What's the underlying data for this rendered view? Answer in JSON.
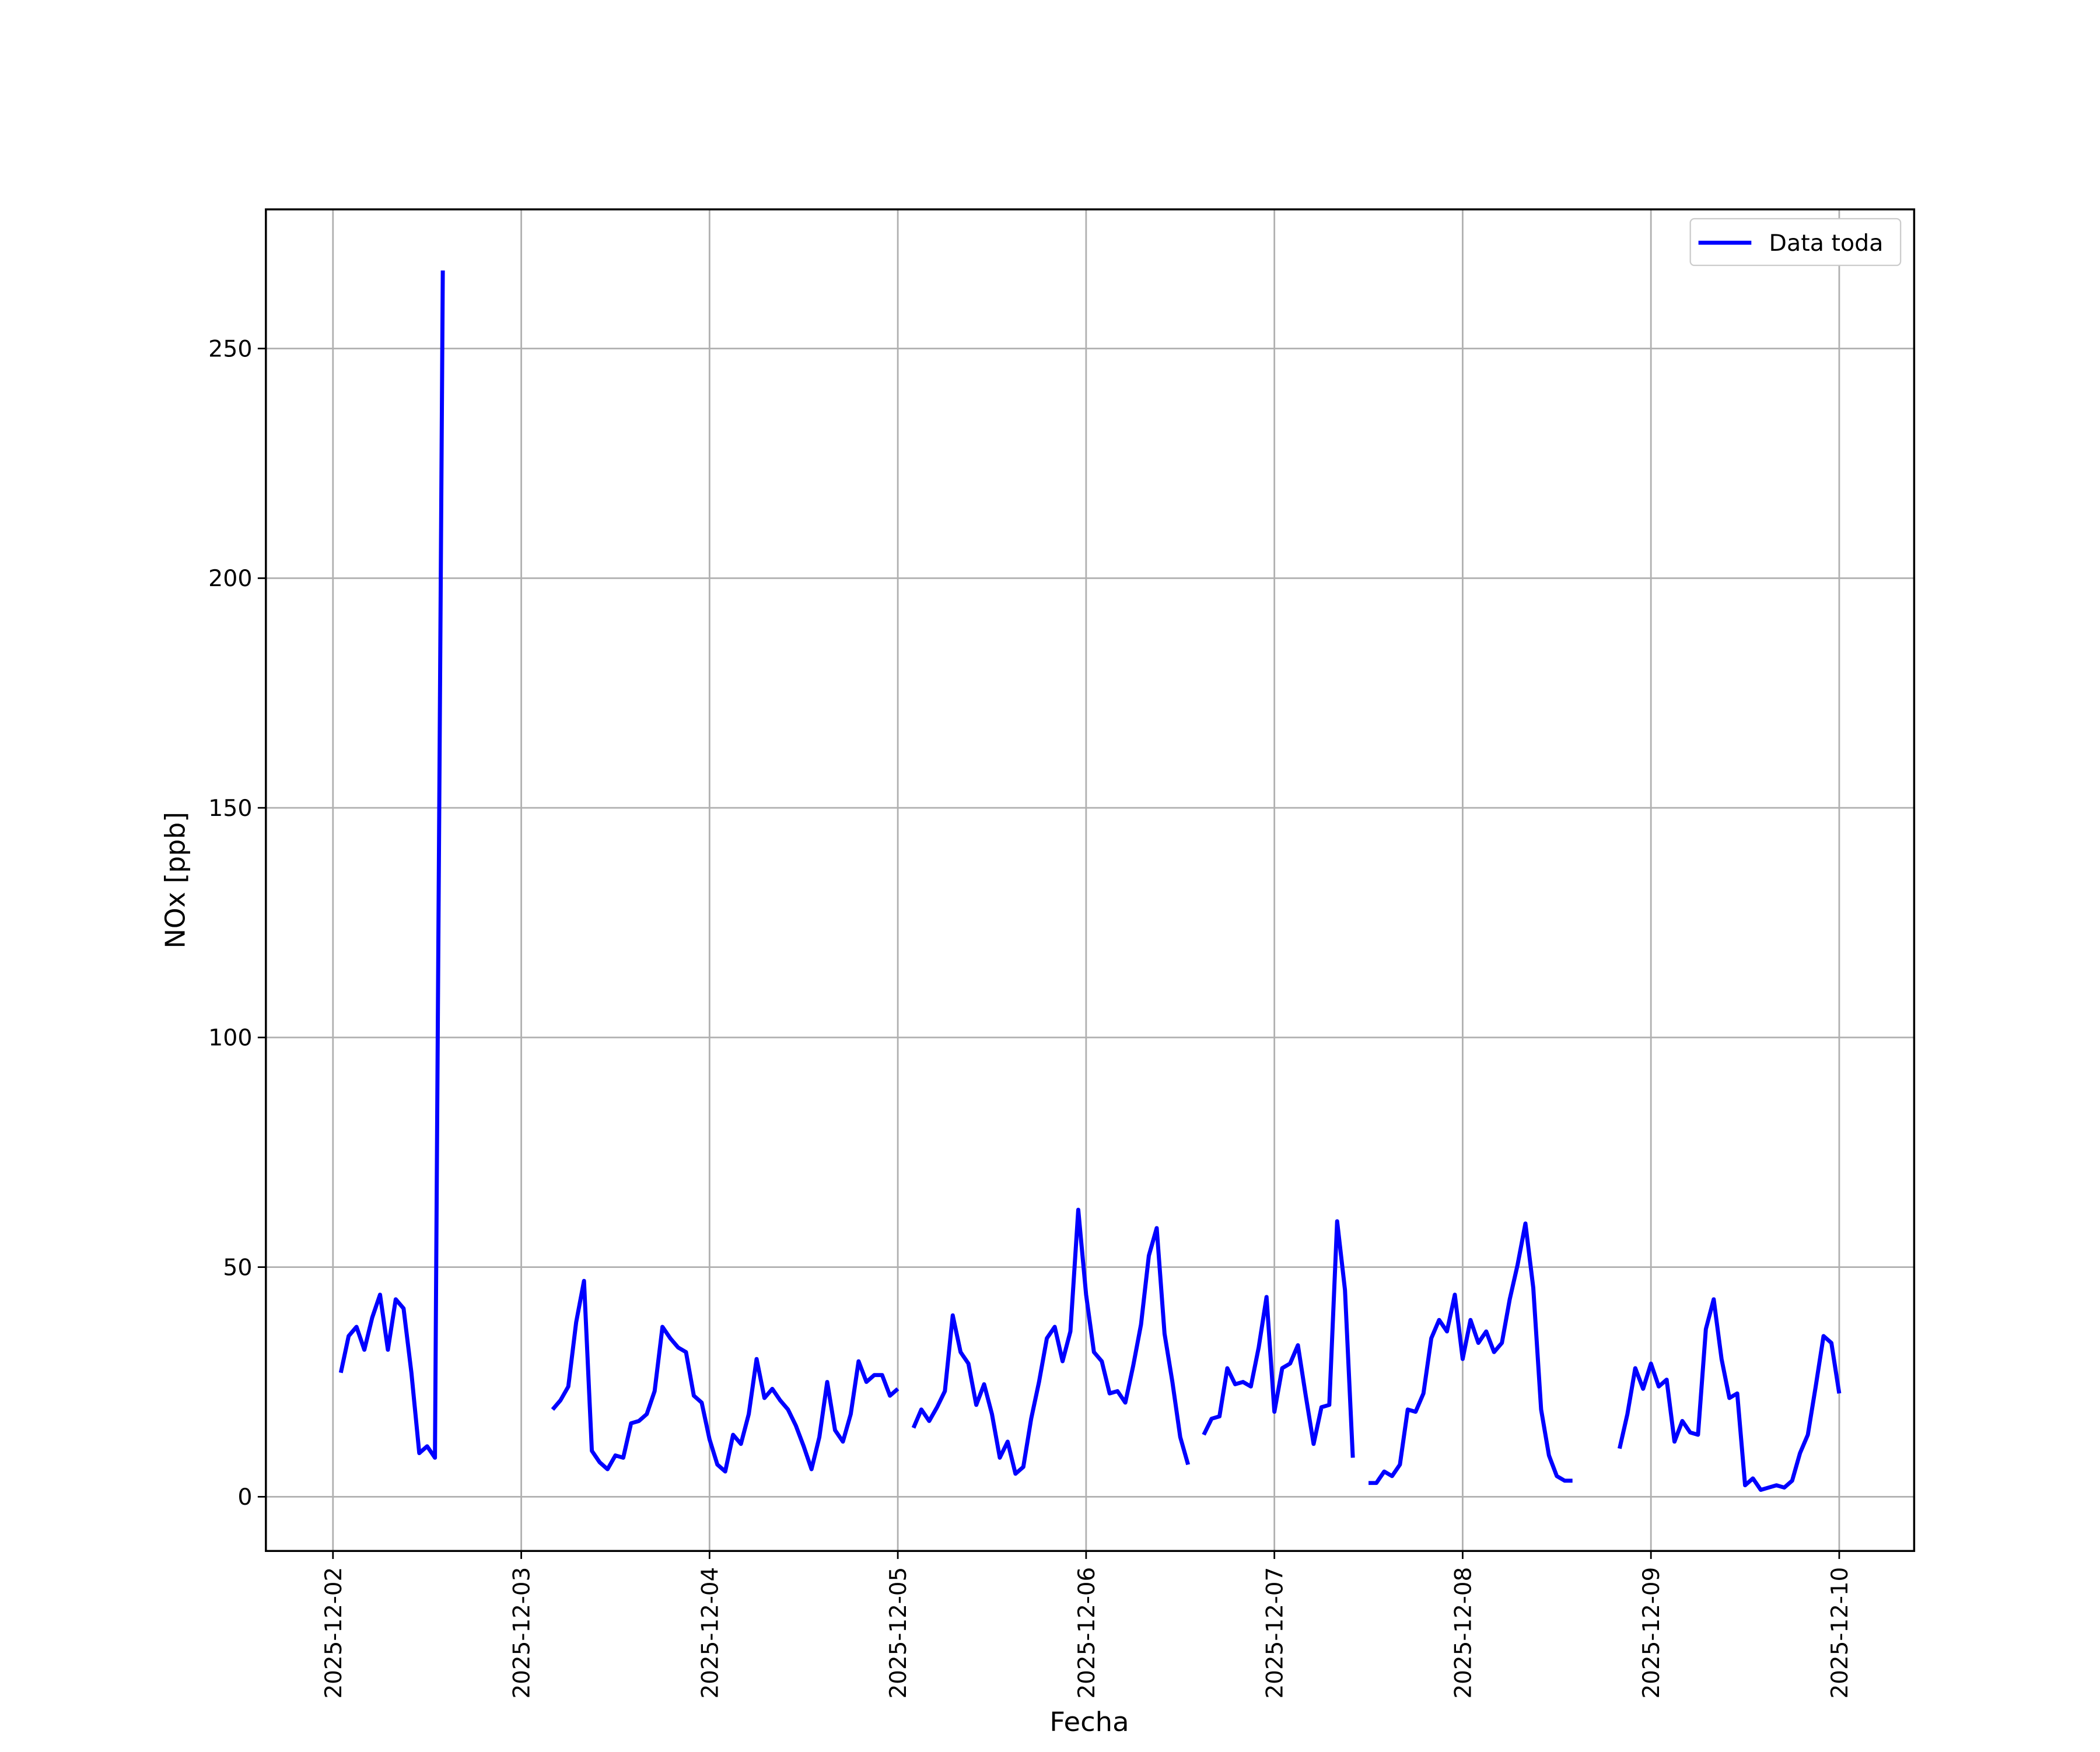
{
  "chart_data": {
    "type": "line",
    "xlabel": "Fecha",
    "ylabel": "NOx [ppb]",
    "x": [
      "2025-12-02 01:00",
      "2025-12-02 02:00",
      "2025-12-02 03:00",
      "2025-12-02 04:00",
      "2025-12-02 05:00",
      "2025-12-02 06:00",
      "2025-12-02 07:00",
      "2025-12-02 08:00",
      "2025-12-02 09:00",
      "2025-12-02 10:00",
      "2025-12-02 11:00",
      "2025-12-02 12:00",
      "2025-12-02 13:00",
      "2025-12-02 14:00",
      "2025-12-02 15:00",
      "2025-12-02 16:00",
      "2025-12-02 17:00",
      "2025-12-02 18:00",
      "2025-12-02 19:00",
      "2025-12-02 20:00",
      "2025-12-02 21:00",
      "2025-12-02 22:00",
      "2025-12-02 23:00",
      "2025-12-03 00:00",
      "2025-12-03 01:00",
      "2025-12-03 02:00",
      "2025-12-03 03:00",
      "2025-12-03 04:00",
      "2025-12-03 05:00",
      "2025-12-03 06:00",
      "2025-12-03 07:00",
      "2025-12-03 08:00",
      "2025-12-03 09:00",
      "2025-12-03 10:00",
      "2025-12-03 11:00",
      "2025-12-03 12:00",
      "2025-12-03 13:00",
      "2025-12-03 14:00",
      "2025-12-03 15:00",
      "2025-12-03 16:00",
      "2025-12-03 17:00",
      "2025-12-03 18:00",
      "2025-12-03 19:00",
      "2025-12-03 20:00",
      "2025-12-03 21:00",
      "2025-12-03 22:00",
      "2025-12-03 23:00",
      "2025-12-04 00:00",
      "2025-12-04 01:00",
      "2025-12-04 02:00",
      "2025-12-04 03:00",
      "2025-12-04 04:00",
      "2025-12-04 05:00",
      "2025-12-04 06:00",
      "2025-12-04 07:00",
      "2025-12-04 08:00",
      "2025-12-04 09:00",
      "2025-12-04 10:00",
      "2025-12-04 11:00",
      "2025-12-04 12:00",
      "2025-12-04 13:00",
      "2025-12-04 14:00",
      "2025-12-04 15:00",
      "2025-12-04 16:00",
      "2025-12-04 17:00",
      "2025-12-04 18:00",
      "2025-12-04 19:00",
      "2025-12-04 20:00",
      "2025-12-04 21:00",
      "2025-12-04 22:00",
      "2025-12-04 23:00",
      "2025-12-05 00:00",
      "2025-12-05 01:00",
      "2025-12-05 02:00",
      "2025-12-05 03:00",
      "2025-12-05 04:00",
      "2025-12-05 05:00",
      "2025-12-05 06:00",
      "2025-12-05 07:00",
      "2025-12-05 08:00",
      "2025-12-05 09:00",
      "2025-12-05 10:00",
      "2025-12-05 11:00",
      "2025-12-05 12:00",
      "2025-12-05 13:00",
      "2025-12-05 14:00",
      "2025-12-05 15:00",
      "2025-12-05 16:00",
      "2025-12-05 17:00",
      "2025-12-05 18:00",
      "2025-12-05 19:00",
      "2025-12-05 20:00",
      "2025-12-05 21:00",
      "2025-12-05 22:00",
      "2025-12-05 23:00",
      "2025-12-06 00:00",
      "2025-12-06 01:00",
      "2025-12-06 02:00",
      "2025-12-06 03:00",
      "2025-12-06 04:00",
      "2025-12-06 05:00",
      "2025-12-06 06:00",
      "2025-12-06 07:00",
      "2025-12-06 08:00",
      "2025-12-06 09:00",
      "2025-12-06 10:00",
      "2025-12-06 11:00",
      "2025-12-06 12:00",
      "2025-12-06 13:00",
      "2025-12-06 14:00",
      "2025-12-06 15:00",
      "2025-12-06 16:00",
      "2025-12-06 17:00",
      "2025-12-06 18:00",
      "2025-12-06 19:00",
      "2025-12-06 20:00",
      "2025-12-06 21:00",
      "2025-12-06 22:00",
      "2025-12-06 23:00",
      "2025-12-07 00:00",
      "2025-12-07 01:00",
      "2025-12-07 02:00",
      "2025-12-07 03:00",
      "2025-12-07 04:00",
      "2025-12-07 05:00",
      "2025-12-07 06:00",
      "2025-12-07 07:00",
      "2025-12-07 08:00",
      "2025-12-07 09:00",
      "2025-12-07 10:00",
      "2025-12-07 11:00",
      "2025-12-07 12:00",
      "2025-12-07 13:00",
      "2025-12-07 14:00",
      "2025-12-07 15:00",
      "2025-12-07 16:00",
      "2025-12-07 17:00",
      "2025-12-07 18:00",
      "2025-12-07 19:00",
      "2025-12-07 20:00",
      "2025-12-07 21:00",
      "2025-12-07 22:00",
      "2025-12-07 23:00",
      "2025-12-08 00:00",
      "2025-12-08 01:00",
      "2025-12-08 02:00",
      "2025-12-08 03:00",
      "2025-12-08 04:00",
      "2025-12-08 05:00",
      "2025-12-08 06:00",
      "2025-12-08 07:00",
      "2025-12-08 08:00",
      "2025-12-08 09:00",
      "2025-12-08 10:00",
      "2025-12-08 11:00",
      "2025-12-08 12:00",
      "2025-12-08 13:00",
      "2025-12-08 14:00",
      "2025-12-08 15:00",
      "2025-12-08 16:00",
      "2025-12-08 17:00",
      "2025-12-08 18:00",
      "2025-12-08 19:00",
      "2025-12-08 20:00",
      "2025-12-08 21:00",
      "2025-12-08 22:00",
      "2025-12-08 23:00",
      "2025-12-09 00:00",
      "2025-12-09 01:00",
      "2025-12-09 02:00",
      "2025-12-09 03:00",
      "2025-12-09 04:00",
      "2025-12-09 05:00",
      "2025-12-09 06:00",
      "2025-12-09 07:00",
      "2025-12-09 08:00",
      "2025-12-09 09:00",
      "2025-12-09 10:00",
      "2025-12-09 11:00",
      "2025-12-09 12:00",
      "2025-12-09 13:00",
      "2025-12-09 14:00",
      "2025-12-09 15:00",
      "2025-12-09 16:00",
      "2025-12-09 17:00",
      "2025-12-09 18:00",
      "2025-12-09 19:00",
      "2025-12-09 20:00",
      "2025-12-09 21:00",
      "2025-12-09 22:00",
      "2025-12-09 23:00",
      "2025-12-10 00:00"
    ],
    "series": [
      {
        "name": "Data toda",
        "color": "#0000ff",
        "values": [
          27,
          35,
          37,
          32,
          39,
          44,
          32,
          43,
          41,
          27,
          9.5,
          11,
          8.5,
          267,
          null,
          null,
          null,
          null,
          null,
          null,
          null,
          null,
          null,
          null,
          null,
          null,
          null,
          19,
          21,
          24,
          38,
          47,
          10,
          7.5,
          6,
          9,
          8.5,
          16,
          16.5,
          18,
          23,
          37,
          34.5,
          32.5,
          31.5,
          22,
          20.5,
          12.5,
          7,
          5.5,
          13.5,
          11.5,
          18,
          30,
          21.5,
          23.5,
          21,
          19,
          15.5,
          11,
          6,
          13,
          25,
          14.5,
          12,
          18,
          29.5,
          25,
          26.5,
          26.5,
          22,
          23.5,
          null,
          15,
          19,
          16.5,
          19.5,
          23,
          39.5,
          31.5,
          29,
          20,
          24.5,
          18,
          8.5,
          12,
          5,
          6.5,
          17,
          25,
          34.5,
          37,
          29.5,
          36,
          62.5,
          44,
          31.5,
          29.5,
          22.5,
          23,
          20.5,
          28.5,
          37.5,
          52.5,
          58.5,
          35.5,
          25,
          13,
          7,
          null,
          13.5,
          17,
          17.5,
          28,
          24.5,
          25,
          24,
          32.5,
          43.5,
          18.5,
          28,
          29,
          33,
          22,
          11.5,
          19.5,
          20,
          60,
          45,
          8.5,
          null,
          3,
          3,
          5.5,
          4.5,
          7,
          19,
          18.5,
          22.5,
          34.5,
          38.5,
          36,
          44,
          30,
          38.5,
          33.5,
          36,
          31.5,
          33.5,
          43,
          50.5,
          59.5,
          45.5,
          19,
          9,
          4.5,
          3.5,
          3.5,
          null,
          null,
          null,
          null,
          null,
          10.5,
          18,
          28,
          23.5,
          29,
          24,
          25.5,
          12,
          16.5,
          14,
          13.5,
          36.5,
          43,
          30,
          21.5,
          22.5,
          2.5,
          4,
          1.5,
          2,
          2.5,
          2,
          3.5,
          9.5,
          13.5,
          24,
          35,
          33.5,
          22.5
        ]
      }
    ],
    "xticks": [
      "2025-12-02",
      "2025-12-03",
      "2025-12-04",
      "2025-12-05",
      "2025-12-06",
      "2025-12-07",
      "2025-12-08",
      "2025-12-09",
      "2025-12-10"
    ],
    "ylim": [
      -11.8,
      280.3
    ],
    "yticks": [
      0,
      50,
      100,
      150,
      200,
      250
    ],
    "grid": true,
    "legend": "upper right"
  }
}
